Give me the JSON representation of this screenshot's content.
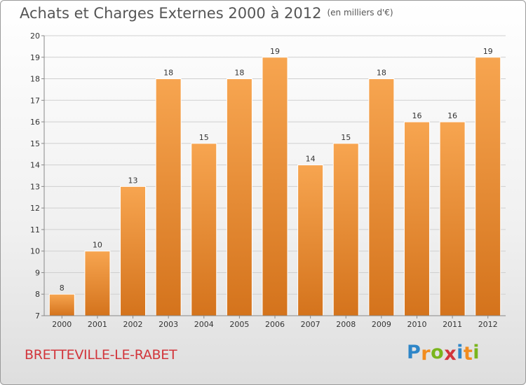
{
  "title": "Achats et Charges Externes 2000 à 2012",
  "unit": "(en milliers d'€)",
  "commune": "BRETTEVILLE-LE-RABET",
  "logo": {
    "letters": [
      "P",
      "r",
      "o",
      "x",
      "i",
      "t",
      "i"
    ],
    "colors": [
      "#2e86c8",
      "#f28c1e",
      "#7ab51d",
      "#d2353b",
      "#2e86c8",
      "#f28c1e",
      "#7ab51d"
    ]
  },
  "colors": {
    "bar_top": "#f7a550",
    "bar_bottom": "#d4731c",
    "grid": "#cfcfcf",
    "axis_text": "#333333"
  },
  "chart_data": {
    "type": "bar",
    "categories": [
      "2000",
      "2001",
      "2002",
      "2003",
      "2004",
      "2005",
      "2006",
      "2007",
      "2008",
      "2009",
      "2010",
      "2011",
      "2012"
    ],
    "values": [
      8,
      10,
      13,
      18,
      15,
      18,
      19,
      14,
      15,
      18,
      16,
      16,
      19
    ],
    "data_labels": [
      "8",
      "10",
      "13",
      "18",
      "15",
      "18",
      "19",
      "14",
      "15",
      "18",
      "16",
      "16",
      "19"
    ],
    "title": "Achats et Charges Externes 2000 à 2012",
    "xlabel": "",
    "ylabel": "",
    "ylim": [
      7,
      20
    ],
    "yticks": [
      7,
      8,
      9,
      10,
      11,
      12,
      13,
      14,
      15,
      16,
      17,
      18,
      19,
      20
    ],
    "grid": true
  }
}
